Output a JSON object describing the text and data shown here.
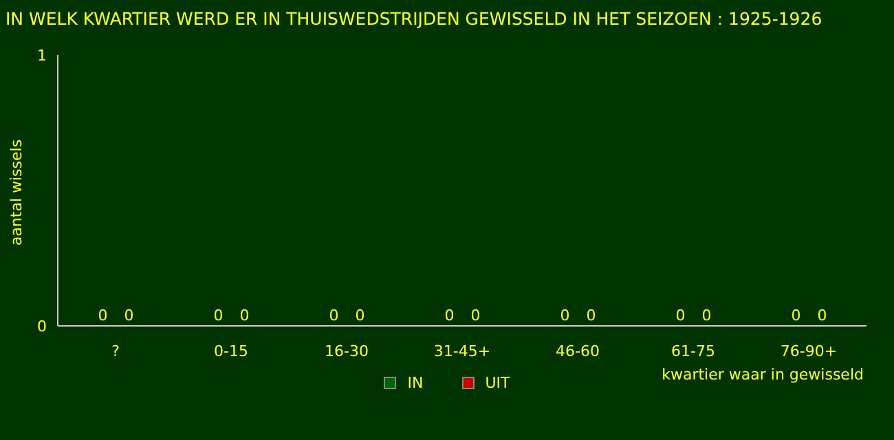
{
  "chart_data": {
    "type": "bar",
    "title": "IN WELK KWARTIER WERD ER IN THUISWEDSTRIJDEN GEWISSELD IN HET SEIZOEN : 1925-1926",
    "xlabel": "kwartier waar in gewisseld",
    "ylabel": "aantal wissels",
    "categories": [
      "?",
      "0-15",
      "16-30",
      "31-45+",
      "46-60",
      "61-75",
      "76-90+"
    ],
    "series": [
      {
        "name": "IN",
        "color": "#006600",
        "values": [
          0,
          0,
          0,
          0,
          0,
          0,
          0
        ]
      },
      {
        "name": "UIT",
        "color": "#cc0000",
        "values": [
          0,
          0,
          0,
          0,
          0,
          0,
          0
        ]
      }
    ],
    "ylim": [
      0,
      1
    ],
    "yticks": [
      0,
      1
    ],
    "legend": "bottom",
    "data_labels": true
  }
}
